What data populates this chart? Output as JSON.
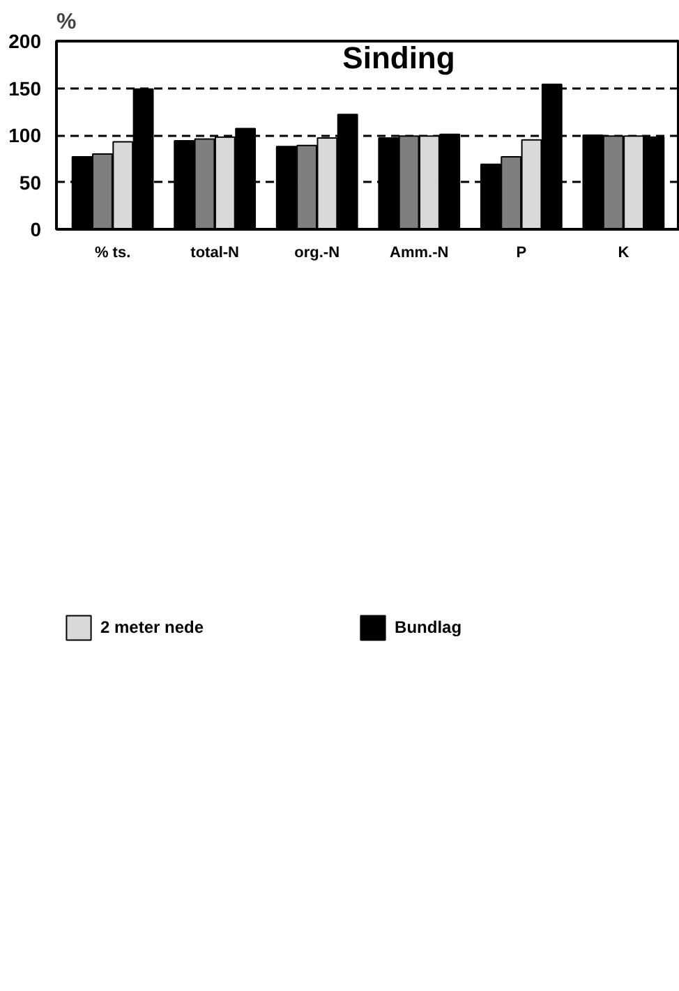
{
  "chart_data": {
    "type": "bar",
    "title": "Sinding",
    "ylabel": "%",
    "categories": [
      "% ts.",
      "total-N",
      "org.-N",
      "Amm.-N",
      "P",
      "K"
    ],
    "series": [
      {
        "color": "#000000",
        "values": [
          77,
          94,
          88,
          97,
          69,
          100
        ]
      },
      {
        "color": "#7f7f7f",
        "values": [
          80,
          96,
          89,
          99,
          77,
          99
        ]
      },
      {
        "name": "2 meter nede",
        "color": "#d9d9d9",
        "values": [
          93,
          98,
          97,
          99,
          95,
          99
        ]
      },
      {
        "name": "Bundlag",
        "color": "#000000",
        "values": [
          149,
          107,
          122,
          101,
          154,
          98
        ]
      }
    ],
    "ylim": [
      0,
      200
    ],
    "yticks": [
      0,
      50,
      100,
      150,
      200
    ],
    "grid": "y",
    "legend": "bottom"
  }
}
